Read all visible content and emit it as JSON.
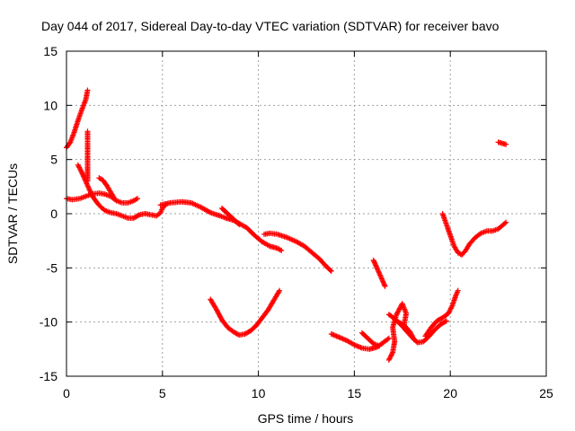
{
  "chart_data": {
    "type": "scatter",
    "title": "Day 044 of 2017, Sidereal Day-to-day VTEC variation (SDTVAR) for receiver bavo",
    "xlabel": "GPS time / hours",
    "ylabel": "SDTVAR / TECUs",
    "xlim": [
      0,
      25
    ],
    "ylim": [
      -15,
      15
    ],
    "xticks": [
      0,
      5,
      10,
      15,
      20,
      25
    ],
    "yticks": [
      -15,
      -10,
      -5,
      0,
      5,
      10,
      15
    ],
    "xtick_labels": [
      "0",
      "5",
      "10",
      "15",
      "20",
      "25"
    ],
    "ytick_labels": [
      "-15",
      "-10",
      "-5",
      "0",
      "5",
      "10",
      "15"
    ],
    "grid": true,
    "marker": "plus",
    "color": "#ff0000",
    "series": [
      {
        "points": [
          [
            0.0,
            6.1
          ],
          [
            0.2,
            6.6
          ],
          [
            0.4,
            7.5
          ],
          [
            0.6,
            8.6
          ],
          [
            0.8,
            9.6
          ],
          [
            1.0,
            10.5
          ],
          [
            1.1,
            11.4
          ]
        ]
      },
      {
        "points": [
          [
            1.1,
            7.6
          ],
          [
            1.1,
            6.4
          ],
          [
            1.1,
            5.0
          ],
          [
            1.1,
            4.0
          ],
          [
            1.1,
            3.0
          ]
        ]
      },
      {
        "points": [
          [
            0.0,
            1.4
          ],
          [
            0.3,
            1.3
          ],
          [
            0.7,
            1.4
          ],
          [
            1.0,
            1.6
          ],
          [
            1.3,
            1.8
          ],
          [
            1.7,
            1.9
          ],
          [
            2.0,
            1.8
          ],
          [
            2.3,
            1.6
          ],
          [
            2.6,
            1.2
          ],
          [
            2.9,
            1.0
          ],
          [
            3.2,
            1.0
          ],
          [
            3.5,
            1.2
          ],
          [
            3.7,
            1.4
          ]
        ]
      },
      {
        "points": [
          [
            0.6,
            4.5
          ],
          [
            0.8,
            3.8
          ],
          [
            1.0,
            3.0
          ],
          [
            1.2,
            2.2
          ],
          [
            1.4,
            1.5
          ],
          [
            1.6,
            1.0
          ],
          [
            1.8,
            0.6
          ],
          [
            2.0,
            0.3
          ],
          [
            2.3,
            0.1
          ],
          [
            2.6,
            0.0
          ],
          [
            2.9,
            -0.2
          ],
          [
            3.2,
            -0.4
          ],
          [
            3.5,
            -0.4
          ],
          [
            3.8,
            -0.1
          ],
          [
            4.1,
            0.0
          ],
          [
            4.4,
            -0.1
          ],
          [
            4.7,
            -0.2
          ],
          [
            4.9,
            0.1
          ],
          [
            5.0,
            0.5
          ],
          [
            5.2,
            0.9
          ]
        ]
      },
      {
        "points": [
          [
            1.7,
            3.3
          ],
          [
            1.9,
            3.1
          ],
          [
            2.1,
            2.6
          ],
          [
            2.3,
            2.0
          ],
          [
            2.5,
            1.4
          ]
        ]
      },
      {
        "points": [
          [
            4.9,
            0.8
          ],
          [
            5.4,
            1.0
          ],
          [
            6.0,
            1.1
          ],
          [
            6.5,
            1.0
          ],
          [
            7.0,
            0.6
          ],
          [
            7.5,
            0.1
          ],
          [
            8.0,
            -0.2
          ],
          [
            8.3,
            -0.4
          ],
          [
            8.7,
            -0.6
          ],
          [
            9.0,
            -0.9
          ],
          [
            9.4,
            -1.3
          ],
          [
            9.8,
            -2.0
          ],
          [
            10.2,
            -2.6
          ],
          [
            10.6,
            -3.0
          ],
          [
            11.0,
            -3.2
          ],
          [
            11.2,
            -3.4
          ]
        ]
      },
      {
        "points": [
          [
            8.1,
            0.5
          ],
          [
            8.4,
            0.0
          ],
          [
            8.7,
            -0.5
          ],
          [
            9.0,
            -1.0
          ]
        ]
      },
      {
        "points": [
          [
            10.3,
            -1.9
          ],
          [
            10.6,
            -1.8
          ],
          [
            11.0,
            -1.9
          ],
          [
            11.5,
            -2.2
          ],
          [
            12.0,
            -2.6
          ],
          [
            12.4,
            -3.0
          ],
          [
            12.8,
            -3.6
          ],
          [
            13.2,
            -4.2
          ],
          [
            13.5,
            -4.8
          ],
          [
            13.8,
            -5.3
          ]
        ]
      },
      {
        "points": [
          [
            7.5,
            -7.9
          ],
          [
            7.8,
            -8.8
          ],
          [
            8.1,
            -9.8
          ],
          [
            8.4,
            -10.5
          ],
          [
            8.7,
            -10.9
          ],
          [
            9.0,
            -11.2
          ],
          [
            9.3,
            -11.1
          ],
          [
            9.6,
            -10.8
          ],
          [
            9.9,
            -10.3
          ],
          [
            10.2,
            -9.6
          ],
          [
            10.5,
            -8.9
          ],
          [
            10.8,
            -8.0
          ],
          [
            11.1,
            -7.1
          ]
        ]
      },
      {
        "points": [
          [
            13.8,
            -11.1
          ],
          [
            14.2,
            -11.4
          ],
          [
            14.6,
            -11.7
          ],
          [
            15.0,
            -12.1
          ],
          [
            15.4,
            -12.4
          ],
          [
            15.8,
            -12.5
          ],
          [
            16.2,
            -12.3
          ],
          [
            16.5,
            -11.9
          ],
          [
            16.8,
            -11.5
          ]
        ]
      },
      {
        "points": [
          [
            15.4,
            -11.0
          ],
          [
            15.7,
            -11.5
          ],
          [
            16.0,
            -12.0
          ],
          [
            16.3,
            -12.2
          ]
        ]
      },
      {
        "points": [
          [
            16.0,
            -4.3
          ],
          [
            16.2,
            -5.1
          ],
          [
            16.4,
            -5.9
          ],
          [
            16.6,
            -6.7
          ]
        ]
      },
      {
        "points": [
          [
            16.8,
            -13.5
          ],
          [
            17.0,
            -12.8
          ],
          [
            17.1,
            -11.8
          ],
          [
            17.0,
            -10.5
          ],
          [
            17.2,
            -9.3
          ],
          [
            17.5,
            -8.3
          ],
          [
            17.7,
            -9.2
          ],
          [
            17.6,
            -10.2
          ]
        ]
      },
      {
        "points": [
          [
            16.8,
            -9.3
          ],
          [
            17.1,
            -9.7
          ],
          [
            17.4,
            -10.2
          ],
          [
            17.7,
            -10.8
          ],
          [
            18.0,
            -11.4
          ],
          [
            18.3,
            -11.9
          ],
          [
            18.6,
            -11.8
          ],
          [
            18.9,
            -11.3
          ],
          [
            19.2,
            -10.7
          ],
          [
            19.5,
            -10.2
          ],
          [
            19.8,
            -9.9
          ]
        ]
      },
      {
        "points": [
          [
            17.3,
            -10.0
          ],
          [
            17.6,
            -10.3
          ],
          [
            17.9,
            -10.9
          ],
          [
            18.1,
            -11.6
          ]
        ]
      },
      {
        "points": [
          [
            18.7,
            -11.3
          ],
          [
            19.0,
            -10.5
          ],
          [
            19.3,
            -9.9
          ],
          [
            19.6,
            -9.6
          ],
          [
            19.9,
            -9.2
          ],
          [
            20.1,
            -8.5
          ],
          [
            20.3,
            -7.5
          ],
          [
            20.4,
            -7.1
          ]
        ]
      },
      {
        "points": [
          [
            19.6,
            0.0
          ],
          [
            19.8,
            -1.0
          ],
          [
            20.0,
            -2.0
          ],
          [
            20.2,
            -3.0
          ],
          [
            20.4,
            -3.6
          ],
          [
            20.6,
            -3.8
          ],
          [
            20.8,
            -3.4
          ],
          [
            21.0,
            -2.8
          ],
          [
            21.3,
            -2.2
          ],
          [
            21.6,
            -1.8
          ],
          [
            21.9,
            -1.6
          ],
          [
            22.2,
            -1.6
          ],
          [
            22.5,
            -1.4
          ],
          [
            22.9,
            -0.8
          ]
        ]
      },
      {
        "points": [
          [
            22.5,
            6.6
          ],
          [
            22.7,
            6.5
          ],
          [
            22.9,
            6.4
          ]
        ]
      }
    ]
  }
}
